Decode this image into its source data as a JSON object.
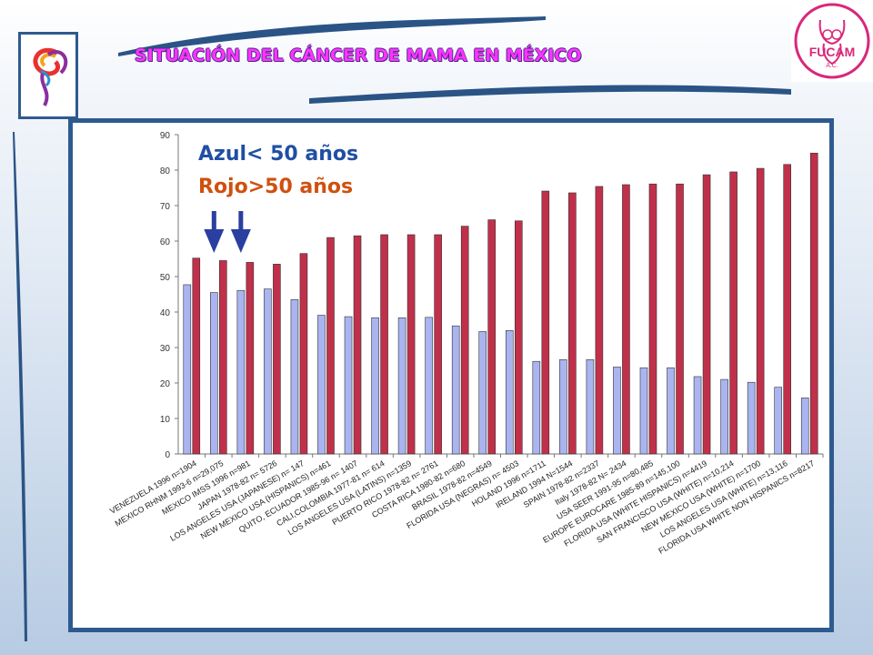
{
  "header": {
    "title": "SITUACIÓN  DEL CÁNCER DE MAMA EN MÉXICO",
    "logo_right_text": "FUCAM",
    "logo_right_sub": "A.C."
  },
  "legend": {
    "blue": "Azul< 50 años",
    "red": "Rojo>50 años"
  },
  "colors": {
    "blue_bar": "#aab4f0",
    "red_bar": "#c0304a",
    "frame": "#2e5b8f",
    "arrow": "#2b3fa0"
  },
  "chart_data": {
    "type": "bar",
    "title": "",
    "xlabel": "",
    "ylabel": "",
    "ylim": [
      0,
      90
    ],
    "yticks": [
      0,
      10,
      20,
      30,
      40,
      50,
      60,
      70,
      80,
      90
    ],
    "grid": false,
    "categories": [
      "VENEZUELA 1996  n=1904",
      "MEXICO RHNM 1993-6  n=29,075",
      "MEXICO IMSS 1996  n=981",
      "JAPAN 1978-82  n= 5726",
      "LOS ANGELES USA (JAPANESE) n= 147",
      "NEW MEXICO USA (HISPANICS)  n=461",
      "QUITO, ECUADOR 1985-96  n= 1407",
      "CALI,COLOMBIA  1977-81  n= 614",
      "LOS ANGELES USA (LATINS)  n=1359",
      "PUERTO RICO 1978-82  n=  2761",
      "COSTA RICA 1980-82  n=680",
      "BRASIL 1978-82  n=4549",
      "FLORIDA USA (NEGRAS)  n= 4503",
      "HOLAND 1996  n=1711",
      "IRELAND 1994 N=1544",
      "SPAIN 1978-82  n=2337",
      "Italy 1978-82 N= 2434",
      "USA SEER 1991-95  n=80,485",
      "EUROPE EUROCARE 1985-89  n=145,100",
      "FLORIDA USA (WHITE HISPANICS) n=4419",
      "SAN FRANCISCO USA (WHITE) n=10,214",
      "NEW MEXICO USA (WHITE)  n=1700",
      "LOS ANGELES USA (WHITE) n=13,116",
      "FLORIDA USA WHITE NON HISPANICS n=8217"
    ],
    "series": [
      {
        "name": "Azul< 50 años",
        "values": [
          47.7,
          45.5,
          46.1,
          46.5,
          43.5,
          39.1,
          38.7,
          38.4,
          38.4,
          38.5,
          36.1,
          34.5,
          34.8,
          26.1,
          26.6,
          26.6,
          24.5,
          24.3,
          24.3,
          21.8,
          21.0,
          20.2,
          18.8,
          15.8
        ]
      },
      {
        "name": "Rojo>50 años",
        "values": [
          55.2,
          54.5,
          54.0,
          53.5,
          56.5,
          61.0,
          61.5,
          61.8,
          61.8,
          61.8,
          64.2,
          66.0,
          65.7,
          74.1,
          73.6,
          75.4,
          75.9,
          76.1,
          76.1,
          78.7,
          79.5,
          80.5,
          81.6,
          84.8
        ]
      }
    ]
  }
}
